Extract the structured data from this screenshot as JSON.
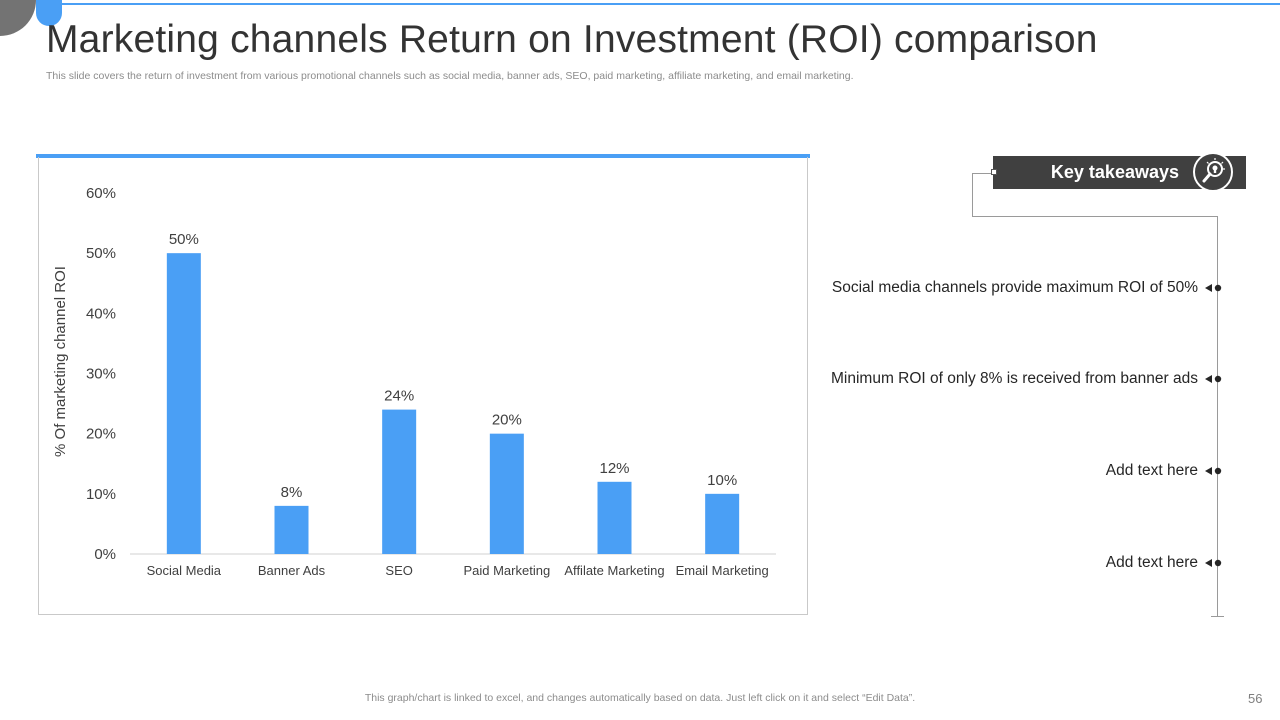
{
  "slide": {
    "title": "Marketing channels Return on Investment (ROI) comparison",
    "subtitle": "This slide covers the return of investment from various promotional channels such as social media, banner ads, SEO, paid marketing, affiliate marketing, and email marketing.",
    "footer_note": "This graph/chart is linked to excel,  and changes automatically based on data. Just left click on it and select “Edit Data”.",
    "page_number": "56",
    "accent_color": "#4a9ff5"
  },
  "chart_data": {
    "type": "bar",
    "categories": [
      "Social Media",
      "Banner Ads",
      "SEO",
      "Paid Marketing",
      "Affilate Marketing",
      "Email Marketing"
    ],
    "values": [
      50,
      8,
      24,
      20,
      12,
      10
    ],
    "data_labels": [
      "50%",
      "8%",
      "24%",
      "20%",
      "12%",
      "10%"
    ],
    "ylabel": "% Of marketing channel ROI",
    "xlabel": "",
    "title": "",
    "ylim": [
      0,
      60
    ],
    "yticks": [
      0,
      10,
      20,
      30,
      40,
      50,
      60
    ],
    "ytick_labels": [
      "0%",
      "10%",
      "20%",
      "30%",
      "40%",
      "50%",
      "60%"
    ],
    "bar_color": "#4a9ff5",
    "grid": false
  },
  "takeaways": {
    "header": "Key takeaways",
    "icon": "lightbulb-magnifier-icon",
    "items": [
      "Social media channels provide maximum ROI of 50%",
      "Minimum ROI of only 8% is received from banner ads",
      "Add text here",
      "Add text here"
    ]
  }
}
